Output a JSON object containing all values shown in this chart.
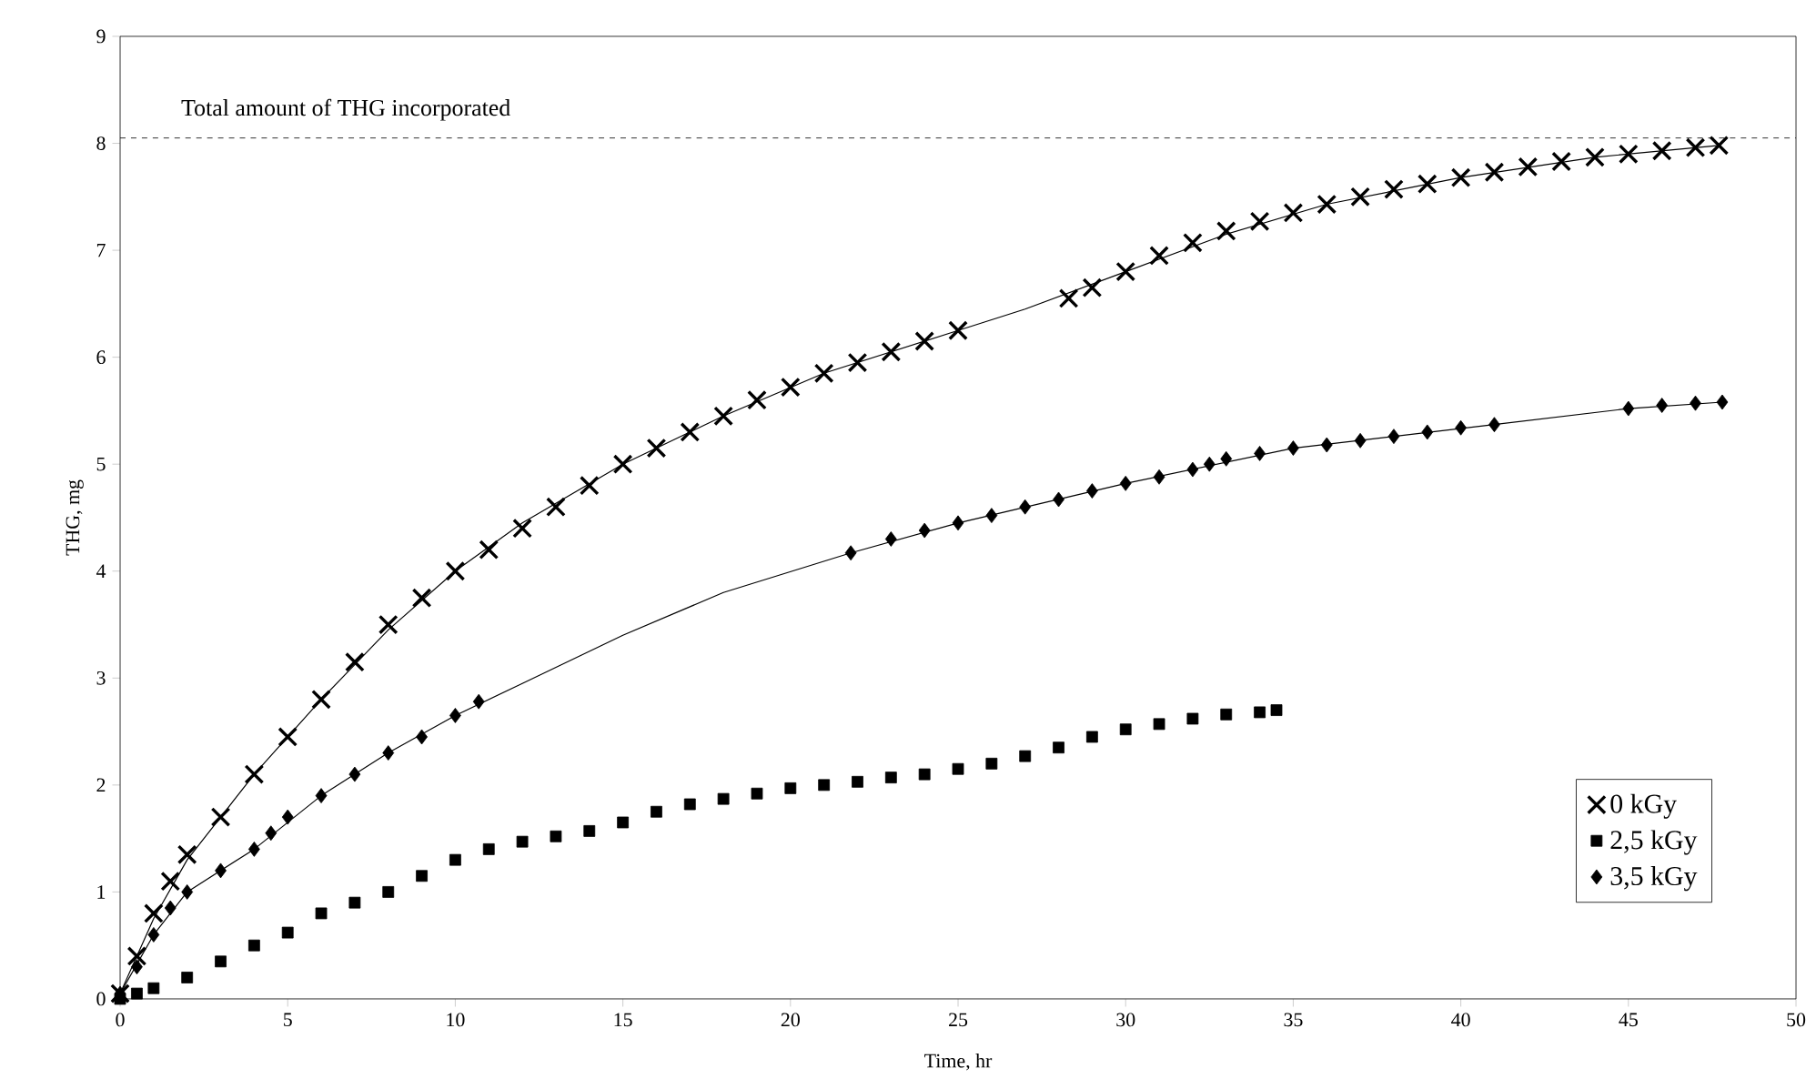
{
  "chart_data": {
    "type": "scatter",
    "xlabel": "Time, hr",
    "ylabel": "THG, mg",
    "xlim": [
      0,
      50
    ],
    "ylim": [
      0,
      9
    ],
    "xticks": [
      0,
      5,
      10,
      15,
      20,
      25,
      30,
      35,
      40,
      45,
      50
    ],
    "yticks": [
      0,
      1,
      2,
      3,
      4,
      5,
      6,
      7,
      8,
      9
    ],
    "legend": "right",
    "grid": false,
    "ref_lines": [
      {
        "axis": "y",
        "value": 8.05,
        "label": "Total amount of THG incorporated",
        "line_style": "dashed",
        "color": "#000000"
      }
    ],
    "series": [
      {
        "name": "0 kGy",
        "color": "#000000",
        "marker": "cross",
        "x": [
          0,
          0.5,
          1,
          1.5,
          2,
          3,
          4,
          5,
          6,
          7,
          8,
          9,
          10,
          11,
          12,
          13,
          14,
          15,
          16,
          17,
          18,
          19,
          20,
          21,
          22,
          23,
          24,
          25,
          28.3,
          29,
          30,
          31,
          32,
          33,
          34,
          35,
          36,
          37,
          38,
          39,
          40,
          41,
          42,
          43,
          44,
          45,
          46,
          47,
          47.7
        ],
        "values": [
          0.05,
          0.4,
          0.8,
          1.1,
          1.35,
          1.7,
          2.1,
          2.45,
          2.8,
          3.15,
          3.5,
          3.75,
          4.0,
          4.2,
          4.4,
          4.6,
          4.8,
          5.0,
          5.15,
          5.3,
          5.45,
          5.6,
          5.72,
          5.85,
          5.95,
          6.05,
          6.15,
          6.25,
          6.55,
          6.65,
          6.8,
          6.95,
          7.07,
          7.18,
          7.27,
          7.35,
          7.43,
          7.5,
          7.57,
          7.62,
          7.68,
          7.73,
          7.78,
          7.83,
          7.87,
          7.9,
          7.93,
          7.96,
          7.98
        ]
      },
      {
        "name": "2,5 kGy",
        "color": "#000000",
        "marker": "square",
        "x": [
          0,
          0.5,
          1,
          2,
          3,
          4,
          5,
          6,
          7,
          8,
          9,
          10,
          11,
          12,
          13,
          14,
          15,
          16,
          17,
          18,
          19,
          20,
          21,
          22,
          23,
          24,
          25,
          26,
          27,
          28,
          29,
          30,
          31,
          32,
          33,
          34,
          34.5
        ],
        "values": [
          0,
          0.05,
          0.1,
          0.2,
          0.35,
          0.5,
          0.62,
          0.8,
          0.9,
          1.0,
          1.15,
          1.3,
          1.4,
          1.47,
          1.52,
          1.57,
          1.65,
          1.75,
          1.82,
          1.87,
          1.92,
          1.97,
          2.0,
          2.03,
          2.07,
          2.1,
          2.15,
          2.2,
          2.27,
          2.35,
          2.45,
          2.52,
          2.57,
          2.62,
          2.66,
          2.68,
          2.7
        ]
      },
      {
        "name": "3,5 kGy",
        "color": "#000000",
        "marker": "diamond",
        "x": [
          0,
          0.5,
          1,
          1.5,
          2,
          3,
          4,
          4.5,
          5,
          6,
          7,
          8,
          9,
          10,
          10.7,
          21.8,
          23,
          24,
          25,
          26,
          27,
          28,
          29,
          30,
          31,
          32,
          32.5,
          33,
          34,
          35,
          36,
          37,
          38,
          39,
          40,
          41,
          45,
          46,
          47,
          47.8
        ],
        "values": [
          0.05,
          0.3,
          0.6,
          0.85,
          1.0,
          1.2,
          1.4,
          1.55,
          1.7,
          1.9,
          2.1,
          2.3,
          2.45,
          2.65,
          2.78,
          4.17,
          4.3,
          4.38,
          4.45,
          4.52,
          4.6,
          4.67,
          4.75,
          4.82,
          4.88,
          4.95,
          5.0,
          5.05,
          5.1,
          5.15,
          5.18,
          5.22,
          5.26,
          5.3,
          5.34,
          5.37,
          5.52,
          5.55,
          5.57,
          5.58
        ]
      },
      {
        "type": "line",
        "color": "#000000",
        "marker": "none",
        "line_style": "solid",
        "x": [
          0,
          1,
          2,
          4,
          6,
          8,
          10,
          12,
          15,
          18,
          21,
          25,
          27,
          30,
          33,
          36,
          40,
          44,
          47.7
        ],
        "values": [
          0.05,
          0.75,
          1.3,
          2.1,
          2.8,
          3.45,
          4.0,
          4.45,
          5.0,
          5.45,
          5.85,
          6.25,
          6.45,
          6.8,
          7.15,
          7.43,
          7.68,
          7.87,
          7.98
        ]
      },
      {
        "type": "line",
        "color": "#000000",
        "marker": "none",
        "line_style": "solid",
        "x": [
          0,
          1,
          2,
          4,
          6,
          8,
          10,
          12,
          15,
          18,
          21.8,
          25,
          30,
          35,
          41,
          45,
          47.8
        ],
        "values": [
          0.05,
          0.6,
          1.0,
          1.4,
          1.9,
          2.3,
          2.65,
          2.95,
          3.4,
          3.8,
          4.17,
          4.45,
          4.82,
          5.15,
          5.37,
          5.52,
          5.58
        ]
      }
    ]
  }
}
